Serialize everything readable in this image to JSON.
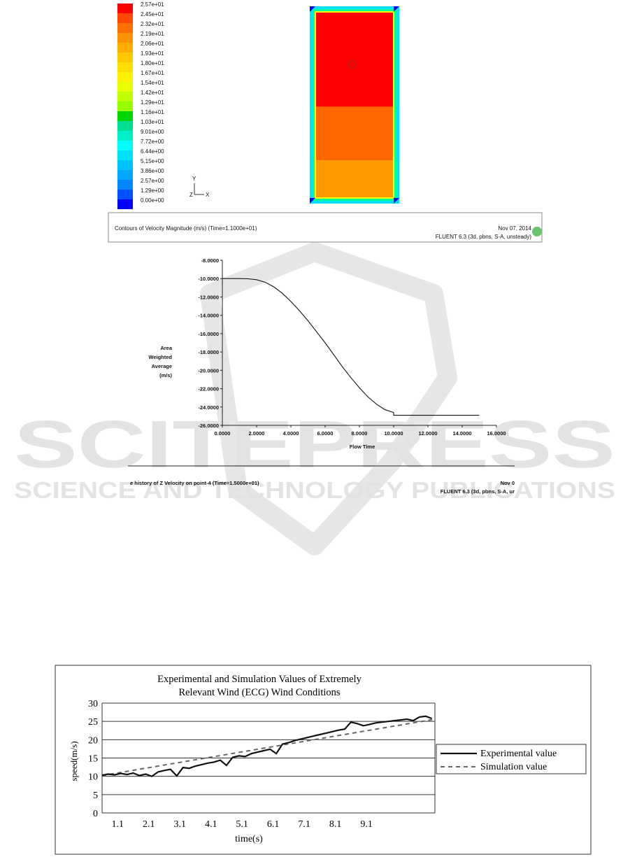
{
  "chart_data": [
    {
      "type": "heatmap",
      "colorbar": {
        "labels": [
          "2.57e+01",
          "2.45e+01",
          "2.32e+01",
          "2.19e+01",
          "2.06e+01",
          "1.93e+01",
          "1.80e+01",
          "1.67e+01",
          "1.54e+01",
          "1.42e+01",
          "1.29e+01",
          "1.16e+01",
          "1.03e+01",
          "9.01e+00",
          "7.72e+00",
          "6.44e+00",
          "5.15e+00",
          "3.86e+00",
          "2.57e+00",
          "1.29e+00",
          "0.00e+00"
        ],
        "colors": [
          "#ff0000",
          "#ff4800",
          "#ff7000",
          "#ff9200",
          "#ffae00",
          "#ffc800",
          "#ffe000",
          "#fff200",
          "#e8ff00",
          "#c0ff00",
          "#96ff00",
          "#00d600",
          "#00e090",
          "#00f0c8",
          "#00ffff",
          "#00e0ff",
          "#00c4ff",
          "#00a8ff",
          "#0086ff",
          "#0052ff",
          "#0000ff"
        ]
      },
      "axes": {
        "y": "Y",
        "z": "Z",
        "x": "X"
      },
      "field": {
        "regions": [
          {
            "name": "top",
            "color": "#ff0000"
          },
          {
            "name": "middle",
            "color": "#ff6600"
          },
          {
            "name": "bottom",
            "color": "#ff9900"
          }
        ],
        "border_colors": [
          "#0000ff",
          "#00e0ff",
          "#00ff99",
          "#ffff00"
        ]
      },
      "footer": {
        "title": "Contours of Velocity Magnitude (m/s)  (Time=1.1000e+01)",
        "date": "Nov 07, 2014",
        "solver": "FLUENT 6.3 (3d, pbns, S-A, unsteady)"
      }
    },
    {
      "type": "line",
      "xlabel": "Flow Time",
      "ylabel": [
        "Area",
        "Weighted",
        "Average",
        "(m/s)"
      ],
      "xlim": [
        0,
        16
      ],
      "ylim": [
        -26,
        -8
      ],
      "xticks": [
        "0.0000",
        "2.0000",
        "4.0000",
        "6.0000",
        "8.0000",
        "10.0000",
        "12.0000",
        "14.0000",
        "16.0000"
      ],
      "yticks": [
        "-8.0000",
        "-10.0000",
        "-12.0000",
        "-14.0000",
        "-16.0000",
        "-18.0000",
        "-20.0000",
        "-22.0000",
        "-24.0000",
        "-26.0000"
      ],
      "x": [
        0,
        1,
        1.5,
        2,
        2.5,
        3,
        3.5,
        4,
        4.5,
        5,
        5.5,
        6,
        6.5,
        7,
        7.5,
        8,
        8.5,
        9,
        9.5,
        10,
        10,
        11,
        12,
        13,
        14,
        15
      ],
      "y": [
        -10,
        -10,
        -10.02,
        -10.12,
        -10.4,
        -10.9,
        -11.6,
        -12.5,
        -13.5,
        -14.6,
        -15.8,
        -17.0,
        -18.3,
        -19.6,
        -20.8,
        -21.9,
        -22.9,
        -23.7,
        -24.3,
        -24.6,
        -24.9,
        -24.9,
        -24.9,
        -24.9,
        -24.9,
        -24.9
      ],
      "footer": {
        "title": "e history of Z Velocity on point-4  (Time=1.5000e+01)",
        "date": "Nov 0",
        "solver": "FLUENT 6.3 (3d, pbns, S-A, ur"
      }
    },
    {
      "type": "line",
      "title": [
        "Experimental and Simulation Values of Extremely",
        "Relevant Wind (ECG) Wind Conditions"
      ],
      "xlabel": "time(s)",
      "ylabel": "speed(m/s)",
      "ylim": [
        0,
        30
      ],
      "yticks": [
        "0",
        "5",
        "10",
        "15",
        "20",
        "25",
        "30"
      ],
      "xticks": [
        "1.1",
        "2.1",
        "3.1",
        "4.1",
        "5.1",
        "6.1",
        "7.1",
        "8.1",
        "9.1"
      ],
      "xlim": [
        0.6,
        11.3
      ],
      "series": [
        {
          "name": "Experimental value",
          "x": [
            0.6,
            0.8,
            1.0,
            1.2,
            1.4,
            1.6,
            1.8,
            2.0,
            2.2,
            2.4,
            2.6,
            2.8,
            3.0,
            3.2,
            3.4,
            3.6,
            3.8,
            4.0,
            4.2,
            4.4,
            4.6,
            4.8,
            5.0,
            5.2,
            5.4,
            5.6,
            5.8,
            6.0,
            6.2,
            6.4,
            6.6,
            6.8,
            7.0,
            7.2,
            7.4,
            7.6,
            7.8,
            8.0,
            8.2,
            8.4,
            8.6,
            8.8,
            9.0,
            9.2,
            9.4,
            9.6,
            9.8,
            10.0,
            10.2,
            10.4,
            10.6,
            10.8,
            11.0,
            11.2
          ],
          "y": [
            10.3,
            10.6,
            10.4,
            10.8,
            10.5,
            10.9,
            10.2,
            10.6,
            10.0,
            11.2,
            11.6,
            11.9,
            10.1,
            12.4,
            12.2,
            12.8,
            13.2,
            13.6,
            13.9,
            14.4,
            13.0,
            15.2,
            15.6,
            15.4,
            16.2,
            16.6,
            17.0,
            17.4,
            16.2,
            18.8,
            19.2,
            19.8,
            20.2,
            20.6,
            21.0,
            21.4,
            21.8,
            22.2,
            22.6,
            22.9,
            24.8,
            24.4,
            23.8,
            24.2,
            24.6,
            24.8,
            25.0,
            25.2,
            25.4,
            25.6,
            25.2,
            26.2,
            26.4,
            25.8
          ]
        },
        {
          "name": "Simulation value",
          "x": [
            0.6,
            11.3
          ],
          "y": [
            10.2,
            25.6
          ]
        }
      ]
    }
  ],
  "watermark": {
    "line1": "SCITEPRESS",
    "line2": "SCIENCE AND TECHNOLOGY PUBLICATIONS"
  }
}
